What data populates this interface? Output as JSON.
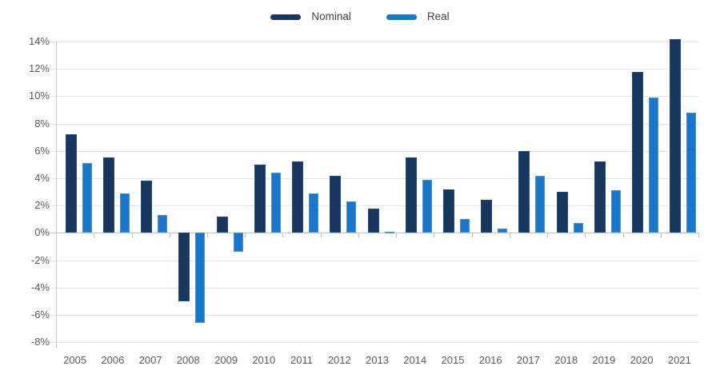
{
  "chart_data": {
    "type": "bar",
    "title": "",
    "categories": [
      "2005",
      "2006",
      "2007",
      "2008",
      "2009",
      "2010",
      "2011",
      "2012",
      "2013",
      "2014",
      "2015",
      "2016",
      "2017",
      "2018",
      "2019",
      "2020",
      "2021"
    ],
    "series": [
      {
        "name": "Nominal",
        "color": "#17375e",
        "border_color": "#234a7d",
        "values": [
          7.2,
          5.5,
          3.8,
          -5.0,
          1.2,
          5.0,
          5.2,
          4.2,
          1.8,
          5.5,
          3.2,
          2.4,
          6.0,
          3.0,
          5.2,
          11.8,
          14.2
        ]
      },
      {
        "name": "Real",
        "color": "#1976c8",
        "border_color": "#4e92d6",
        "values": [
          5.1,
          2.9,
          1.3,
          -6.6,
          -1.4,
          4.4,
          2.9,
          2.3,
          0.1,
          3.9,
          1.0,
          0.3,
          4.2,
          0.7,
          3.1,
          9.9,
          8.8
        ]
      }
    ],
    "ylim": [
      -8,
      14
    ],
    "ytick_step": 2,
    "ytick_labels": [
      "14%",
      "12%",
      "10%",
      "8%",
      "6%",
      "4%",
      "2%",
      "0%",
      "-2%",
      "-4%",
      "-6%",
      "-8%"
    ],
    "grid": true,
    "legend_position": "top-center"
  },
  "colors": {
    "background": "#ffffff",
    "gridline": "#e3e3e3",
    "zero_line": "#c2c2c2",
    "axis_line": "#c9c9c9",
    "axis_text": "#595959",
    "legend_text": "#3f3f3f"
  }
}
